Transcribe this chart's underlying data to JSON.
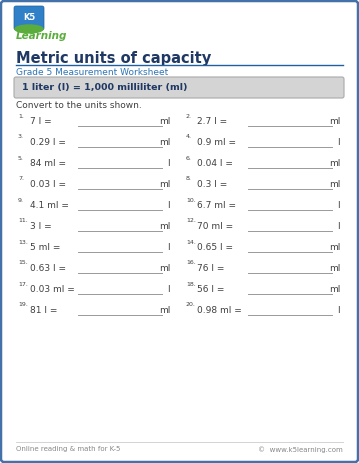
{
  "title": "Metric units of capacity",
  "subtitle": "Grade 5 Measurement Worksheet",
  "formula_box": "1 liter (l) = 1,000 milliliter (ml)",
  "instruction": "Convert to the units shown.",
  "problems": [
    {
      "num": "1.",
      "expr": "7 l =",
      "unit": "ml"
    },
    {
      "num": "2.",
      "expr": "2.7 l =",
      "unit": "ml"
    },
    {
      "num": "3.",
      "expr": "0.29 l =",
      "unit": "ml"
    },
    {
      "num": "4.",
      "expr": "0.9 ml =",
      "unit": "l"
    },
    {
      "num": "5.",
      "expr": "84 ml =",
      "unit": "l"
    },
    {
      "num": "6.",
      "expr": "0.04 l =",
      "unit": "ml"
    },
    {
      "num": "7.",
      "expr": "0.03 l =",
      "unit": "ml"
    },
    {
      "num": "8.",
      "expr": "0.3 l =",
      "unit": "ml"
    },
    {
      "num": "9.",
      "expr": "4.1 ml =",
      "unit": "l"
    },
    {
      "num": "10.",
      "expr": "6.7 ml =",
      "unit": "l"
    },
    {
      "num": "11.",
      "expr": "3 l =",
      "unit": "ml"
    },
    {
      "num": "12.",
      "expr": "70 ml =",
      "unit": "l"
    },
    {
      "num": "13.",
      "expr": "5 ml =",
      "unit": "l"
    },
    {
      "num": "14.",
      "expr": "0.65 l =",
      "unit": "ml"
    },
    {
      "num": "15.",
      "expr": "0.63 l =",
      "unit": "ml"
    },
    {
      "num": "16.",
      "expr": "76 l =",
      "unit": "ml"
    },
    {
      "num": "17.",
      "expr": "0.03 ml =",
      "unit": "l"
    },
    {
      "num": "18.",
      "expr": "56 l =",
      "unit": "ml"
    },
    {
      "num": "19.",
      "expr": "81 l =",
      "unit": "ml"
    },
    {
      "num": "20.",
      "expr": "0.98 ml =",
      "unit": "l"
    }
  ],
  "footer_left": "Online reading & math for K-5",
  "footer_right": "©  www.k5learning.com",
  "bg_color": "#ffffff",
  "border_color": "#4472a8",
  "title_color": "#1f3864",
  "subtitle_color": "#2e75b6",
  "formula_bg": "#d4d4d4",
  "formula_color": "#1f3864",
  "text_color": "#404040",
  "footer_color": "#888888",
  "logo_green": "#5aad3c",
  "logo_blue": "#2e75b6"
}
